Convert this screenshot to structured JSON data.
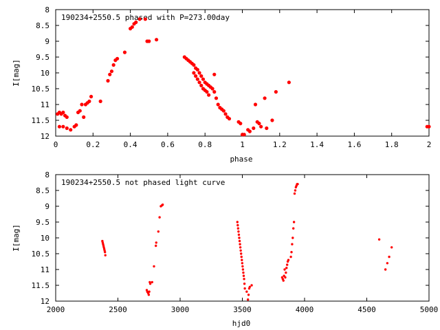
{
  "chart_data": [
    {
      "type": "scatter",
      "title": "190234+2550.5 phased with P=273.00day",
      "xlabel": "phase",
      "ylabel": "I[mag]",
      "xlim": [
        0,
        2
      ],
      "ylim": [
        12,
        8
      ],
      "y_inverted": true,
      "xticks": [
        0,
        0.2,
        0.4,
        0.6,
        0.8,
        1,
        1.2,
        1.4,
        1.6,
        1.8,
        2
      ],
      "xtick_labels": [
        "0",
        "0.2",
        "0.4",
        "0.6",
        "0.8",
        "1",
        "1.2",
        "1.4",
        "1.6",
        "1.8",
        "2"
      ],
      "yticks": [
        8,
        8.5,
        9,
        9.5,
        10,
        10.5,
        11,
        11.5,
        12
      ],
      "ytick_labels": [
        "8",
        "8.5",
        "9",
        "9.5",
        "10",
        "10.5",
        "11",
        "11.5",
        "12"
      ],
      "grid": false,
      "marker_color": "#ff0000",
      "series": [
        {
          "x": [
            0.01,
            0.02,
            0.03,
            0.04,
            0.05,
            0.06,
            0.02,
            0.04,
            0.06,
            0.08,
            0.1,
            0.11,
            0.12,
            0.13,
            0.14,
            0.15,
            0.16,
            0.17,
            0.18,
            0.19,
            0.24,
            0.28,
            0.29,
            0.3,
            0.31,
            0.32,
            0.33,
            0.37,
            0.4,
            0.41,
            0.42,
            0.43,
            0.45,
            0.48,
            0.49,
            0.5,
            0.54,
            0.69,
            0.7,
            0.71,
            0.72,
            0.73,
            0.74,
            0.75,
            0.76,
            0.77,
            0.78,
            0.79,
            0.8,
            0.81,
            0.82,
            0.83,
            0.84,
            0.85,
            0.86,
            0.87,
            0.88,
            0.89,
            0.9,
            0.91,
            0.92,
            0.93,
            0.74,
            0.75,
            0.76,
            0.77,
            0.78,
            0.79,
            0.8,
            0.81,
            0.82,
            0.85,
            0.98,
            0.99,
            1.0,
            1.01,
            1.03,
            1.04,
            1.06,
            1.07,
            1.08,
            1.09,
            1.1,
            1.12,
            1.13,
            1.16,
            1.18,
            1.25,
            1.99,
            2.0
          ],
          "y": [
            11.3,
            11.25,
            11.3,
            11.25,
            11.35,
            11.4,
            11.7,
            11.7,
            11.75,
            11.8,
            11.7,
            11.65,
            11.25,
            11.2,
            11.0,
            11.4,
            11.0,
            10.95,
            10.9,
            10.75,
            10.9,
            10.25,
            10.05,
            9.95,
            9.75,
            9.6,
            9.55,
            9.35,
            8.6,
            8.55,
            8.45,
            8.4,
            8.3,
            8.3,
            9.0,
            9.0,
            8.95,
            9.5,
            9.55,
            9.6,
            9.65,
            9.7,
            9.75,
            9.85,
            9.9,
            10.0,
            10.1,
            10.2,
            10.3,
            10.35,
            10.4,
            10.45,
            10.5,
            10.6,
            10.8,
            11.0,
            11.1,
            11.15,
            11.2,
            11.3,
            11.4,
            11.45,
            10.0,
            10.1,
            10.2,
            10.3,
            10.4,
            10.5,
            10.55,
            10.6,
            10.7,
            10.05,
            11.55,
            11.6,
            11.95,
            11.95,
            11.8,
            11.85,
            11.75,
            11.0,
            11.55,
            11.6,
            11.7,
            10.8,
            11.75,
            11.5,
            10.6,
            10.3,
            11.7,
            11.7
          ]
        }
      ]
    },
    {
      "type": "scatter",
      "title": "190234+2550.5 not phased light curve",
      "xlabel": "hjd0",
      "ylabel": "I[mag]",
      "xlim": [
        2000,
        5000
      ],
      "ylim": [
        12,
        8
      ],
      "y_inverted": true,
      "xticks": [
        2000,
        2500,
        3000,
        3500,
        4000,
        4500,
        5000
      ],
      "xtick_labels": [
        "2000",
        "2500",
        "3000",
        "3500",
        "4000",
        "4500",
        "5000"
      ],
      "yticks": [
        8,
        8.5,
        9,
        9.5,
        10,
        10.5,
        11,
        11.5,
        12
      ],
      "ytick_labels": [
        "8",
        "8.5",
        "9",
        "9.5",
        "10",
        "10.5",
        "11",
        "11.5",
        "12"
      ],
      "grid": false,
      "marker_color": "#ff0000",
      "series": [
        {
          "x": [
            2375,
            2378,
            2381,
            2384,
            2387,
            2390,
            2393,
            2396,
            2399,
            2732,
            2736,
            2740,
            2744,
            2748,
            2752,
            2756,
            2760,
            2775,
            2790,
            2805,
            2808,
            2825,
            2835,
            2845,
            2855,
            2860,
            3460,
            3463,
            3466,
            3469,
            3472,
            3475,
            3478,
            3481,
            3484,
            3487,
            3490,
            3493,
            3496,
            3499,
            3502,
            3505,
            3508,
            3511,
            3514,
            3517,
            3520,
            3535,
            3545,
            3550,
            3555,
            3560,
            3575,
            3820,
            3825,
            3830,
            3835,
            3840,
            3845,
            3850,
            3855,
            3860,
            3865,
            3870,
            3890,
            3895,
            3900,
            3905,
            3910,
            3915,
            3920,
            3925,
            3930,
            3935,
            3940,
            3945,
            4600,
            4650,
            4665,
            4680,
            4700
          ],
          "y": [
            10.1,
            10.15,
            10.2,
            10.25,
            10.3,
            10.35,
            10.4,
            10.45,
            10.55,
            11.65,
            11.7,
            11.72,
            11.75,
            11.8,
            11.7,
            11.4,
            11.45,
            11.4,
            10.9,
            10.25,
            10.15,
            9.8,
            9.35,
            9.0,
            8.97,
            8.95,
            9.5,
            9.6,
            9.7,
            9.8,
            9.9,
            10.0,
            10.1,
            10.2,
            10.3,
            10.4,
            10.5,
            10.6,
            10.7,
            10.8,
            10.9,
            11.0,
            11.1,
            11.2,
            11.3,
            11.45,
            11.6,
            11.7,
            11.95,
            11.8,
            11.6,
            11.55,
            11.5,
            11.25,
            11.3,
            11.35,
            11.2,
            11.0,
            11.25,
            11.1,
            10.95,
            10.85,
            10.75,
            10.7,
            10.6,
            10.45,
            10.2,
            10.0,
            9.7,
            9.5,
            8.6,
            8.5,
            8.4,
            8.35,
            8.3,
            8.3,
            10.05,
            11.0,
            10.8,
            10.6,
            10.3
          ]
        }
      ]
    }
  ]
}
